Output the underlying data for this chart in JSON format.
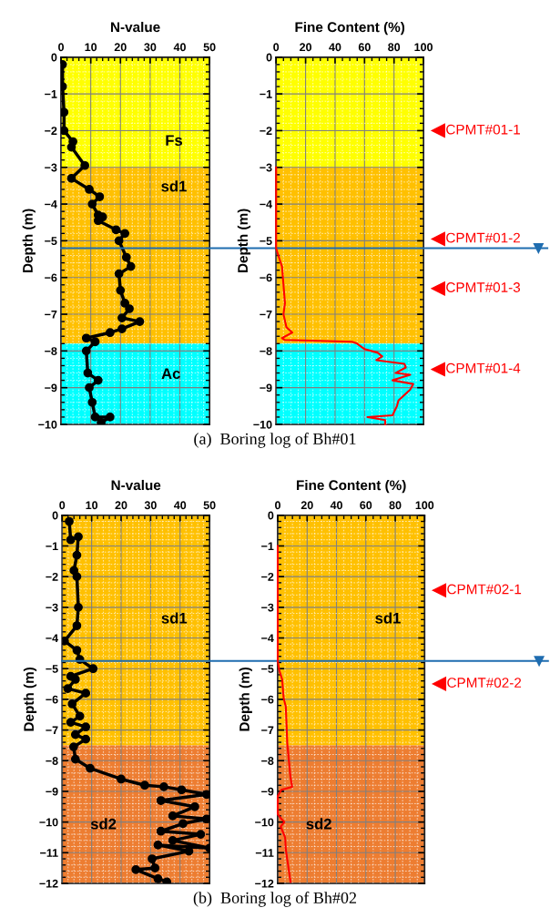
{
  "chart_data": [
    {
      "type": "line",
      "title": "N-value",
      "ylabel": "Depth (m)",
      "xlim": [
        0,
        50
      ],
      "xticks": [
        0,
        10,
        20,
        30,
        40,
        50
      ],
      "ylim": [
        -10,
        0
      ],
      "yticks": [
        0,
        -1,
        -2,
        -3,
        -4,
        -5,
        -6,
        -7,
        -8,
        -9,
        -10
      ],
      "grid": true,
      "marker": "circle",
      "line_style": "solid",
      "series": [
        {
          "color": "#000000",
          "x": [
            0.5,
            0.5,
            1,
            1,
            4,
            3.5,
            8,
            3.5,
            9.5,
            13,
            10.5,
            12.5,
            14,
            12.5,
            18.5,
            21.5,
            19.5,
            22,
            23.5,
            19.5,
            20,
            21.5,
            23,
            20.5,
            26.5,
            20.5,
            16.5,
            8.5,
            11.5,
            8.5,
            9,
            12.5,
            9.5,
            10.5,
            11.5,
            16.5,
            13.5
          ],
          "values": [
            -0.2,
            -0.8,
            -1.5,
            -2,
            -2.3,
            -2.45,
            -2.95,
            -3.3,
            -3.6,
            -3.8,
            -4.0,
            -4.3,
            -4.35,
            -4.45,
            -4.7,
            -4.8,
            -5.0,
            -5.45,
            -5.7,
            -5.9,
            -6.35,
            -6.7,
            -6.85,
            -7.1,
            -7.2,
            -7.4,
            -7.5,
            -7.65,
            -7.75,
            -8,
            -8.6,
            -8.8,
            -9,
            -9.4,
            -9.8,
            -9.8,
            -9.95
          ]
        }
      ],
      "bands": [
        {
          "axis": "y",
          "from": 0,
          "to": -3,
          "color": "#ffff00",
          "label": "Fs"
        },
        {
          "axis": "y",
          "from": -3,
          "to": -7.8,
          "color": "#ffc000",
          "label": "sd1"
        },
        {
          "axis": "y",
          "from": -7.8,
          "to": -10,
          "color": "#00ffff",
          "label": "Ac"
        }
      ],
      "ref_lines": [
        {
          "axis": "y",
          "value": -5.2,
          "color": "#1f6db0"
        }
      ]
    },
    {
      "type": "line",
      "title": "Fine Content (%)",
      "ylabel": "Depth (m)",
      "xlim": [
        0,
        100
      ],
      "xticks": [
        0,
        20,
        40,
        60,
        80,
        100
      ],
      "ylim": [
        -10,
        0
      ],
      "yticks": [
        0,
        -1,
        -2,
        -3,
        -4,
        -5,
        -6,
        -7,
        -8,
        -9,
        -10
      ],
      "grid": true,
      "line_style": "solid",
      "series": [
        {
          "color": "#ff0000",
          "x": [
            0,
            0,
            1.5,
            4,
            6,
            5,
            7,
            11,
            4,
            6,
            51.5,
            55,
            60,
            69,
            72,
            68,
            87,
            88,
            81,
            91,
            79,
            93,
            91,
            83,
            82,
            79,
            62,
            74,
            74
          ],
          "values": [
            -3,
            -5.2,
            -5.4,
            -5.7,
            -6.7,
            -7,
            -7.35,
            -7.5,
            -7.65,
            -7.7,
            -7.75,
            -7.8,
            -7.95,
            -8.05,
            -8.15,
            -8.25,
            -8.35,
            -8.45,
            -8.6,
            -8.65,
            -8.8,
            -8.9,
            -9.05,
            -9.35,
            -9.5,
            -9.75,
            -9.8,
            -9.88,
            -10
          ]
        }
      ],
      "bands": [
        {
          "axis": "y",
          "from": 0,
          "to": -3,
          "color": "#ffff00"
        },
        {
          "axis": "y",
          "from": -3,
          "to": -7.8,
          "color": "#ffc000"
        },
        {
          "axis": "y",
          "from": -7.8,
          "to": -10,
          "color": "#00ffff"
        }
      ],
      "ref_lines": [
        {
          "axis": "y",
          "value": -5.2,
          "color": "#1f6db0"
        }
      ],
      "annotations": [
        "CPMT#01-1",
        "CPMT#01-2",
        "CPMT#01-3",
        "CPMT#01-4",
        "(a)  Boring log of Bh#01"
      ]
    },
    {
      "type": "line",
      "title": "N-value",
      "ylabel": "Depth (m)",
      "xlim": [
        0,
        50
      ],
      "xticks": [
        0,
        10,
        20,
        30,
        40,
        50
      ],
      "ylim": [
        -12,
        0
      ],
      "yticks": [
        0,
        -1,
        -2,
        -3,
        -4,
        -5,
        -6,
        -7,
        -8,
        -9,
        -10,
        -11,
        -12
      ],
      "grid": true,
      "marker": "circle",
      "line_style": "solid",
      "series": [
        {
          "color": "#000000",
          "x": [
            2.4,
            2.9,
            5.5,
            5,
            4,
            5,
            5.5,
            5,
            0.8,
            5,
            6,
            10.5,
            2.9,
            4.5,
            1.9,
            8,
            3.4,
            6,
            2.9,
            8,
            4.5,
            8,
            3.9,
            4.5,
            9.5,
            20,
            28,
            34.5,
            40.5,
            49,
            33.5,
            45,
            37.5,
            49,
            41,
            33.5,
            47,
            37.5,
            50,
            32.5,
            43,
            30.5,
            31.5,
            25,
            32.5,
            35.5
          ],
          "values": [
            -0.2,
            -0.8,
            -0.7,
            -1.3,
            -1.8,
            -2,
            -3,
            -3.6,
            -4.1,
            -4.4,
            -4.7,
            -5,
            -5.25,
            -5.35,
            -5.65,
            -5.8,
            -6.15,
            -6.55,
            -6.75,
            -6.9,
            -7.15,
            -7.3,
            -7.55,
            -7.95,
            -8.25,
            -8.6,
            -8.8,
            -8.85,
            -8.95,
            -9.1,
            -9.3,
            -9.5,
            -9.8,
            -9.9,
            -10.05,
            -10.3,
            -10.4,
            -10.6,
            -10.85,
            -10.75,
            -10.95,
            -11.2,
            -11.5,
            -11.55,
            -11.85,
            -11.95
          ]
        }
      ],
      "bands": [
        {
          "axis": "y",
          "from": 0,
          "to": -7.5,
          "color": "#ffc000",
          "label": "sd1"
        },
        {
          "axis": "y",
          "from": -7.5,
          "to": -12,
          "color": "#ed7d31",
          "label": "sd2"
        }
      ],
      "ref_lines": [
        {
          "axis": "y",
          "value": -4.75,
          "color": "#1f6db0"
        }
      ]
    },
    {
      "type": "line",
      "title": "Fine Content (%)",
      "ylabel": "Depth (m)",
      "xlim": [
        0,
        100
      ],
      "xticks": [
        0,
        20,
        40,
        60,
        80,
        100
      ],
      "ylim": [
        -12,
        0
      ],
      "yticks": [
        0,
        -1,
        -2,
        -3,
        -4,
        -5,
        -6,
        -7,
        -8,
        -9,
        -10,
        -11,
        -12
      ],
      "grid": true,
      "line_style": "solid",
      "series": [
        {
          "color": "#ff0000",
          "x": [
            0,
            0,
            1,
            3,
            4,
            5.5,
            6.5,
            8.7,
            9.8,
            2.5,
            0,
            0,
            2.5,
            4.5,
            2,
            5,
            5.5,
            8.7
          ],
          "values": [
            -1,
            -4.75,
            -5.05,
            -5.35,
            -5.95,
            -6.25,
            -7.45,
            -8.55,
            -8.85,
            -8.95,
            -9.15,
            -9.75,
            -9.9,
            -10.0,
            -10.15,
            -10.5,
            -10.9,
            -11.95
          ]
        }
      ],
      "bands": [
        {
          "axis": "y",
          "from": 0,
          "to": -7.5,
          "color": "#ffc000",
          "label": "sd1"
        },
        {
          "axis": "y",
          "from": -7.5,
          "to": -12,
          "color": "#ed7d31",
          "label": "sd2"
        }
      ],
      "ref_lines": [
        {
          "axis": "y",
          "value": -4.75,
          "color": "#1f6db0"
        }
      ],
      "annotations": [
        "CPMT#02-1",
        "CPMT#02-2",
        "(b)  Boring log of Bh#02"
      ]
    }
  ]
}
